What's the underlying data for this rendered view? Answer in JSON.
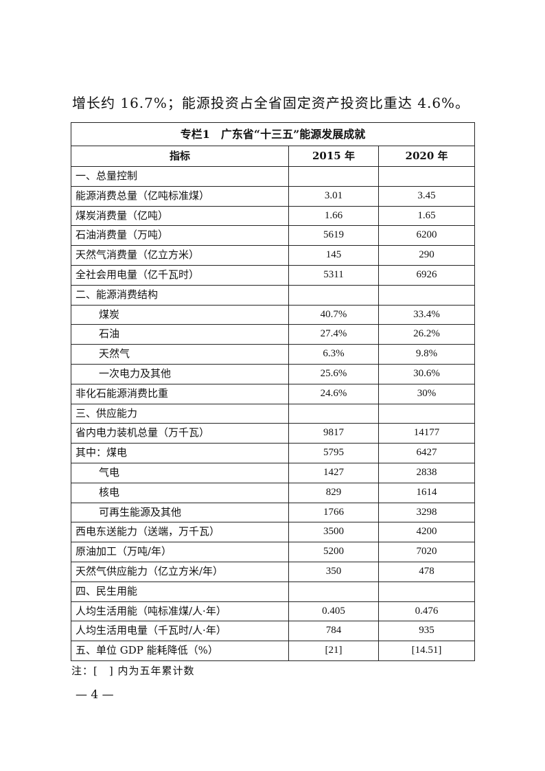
{
  "intro_text": "增长约 16.7%；能源投资占全省固定资产投资比重达 4.6%。",
  "table": {
    "title": "专栏1　广东省“十三五”能源发展成就",
    "headers": [
      "指标",
      "2015 年",
      "2020 年"
    ],
    "rows": [
      {
        "label": "一、总量控制",
        "v2015": "",
        "v2020": "",
        "indent": false
      },
      {
        "label": "能源消费总量（亿吨标准煤）",
        "v2015": "3.01",
        "v2020": "3.45",
        "indent": false
      },
      {
        "label": "煤炭消费量（亿吨）",
        "v2015": "1.66",
        "v2020": "1.65",
        "indent": false
      },
      {
        "label": "石油消费量（万吨）",
        "v2015": "5619",
        "v2020": "6200",
        "indent": false
      },
      {
        "label": "天然气消费量（亿立方米）",
        "v2015": "145",
        "v2020": "290",
        "indent": false
      },
      {
        "label": "全社会用电量（亿千瓦时）",
        "v2015": "5311",
        "v2020": "6926",
        "indent": false
      },
      {
        "label": "二、能源消费结构",
        "v2015": "",
        "v2020": "",
        "indent": false
      },
      {
        "label": "煤炭",
        "v2015": "40.7%",
        "v2020": "33.4%",
        "indent": true
      },
      {
        "label": "石油",
        "v2015": "27.4%",
        "v2020": "26.2%",
        "indent": true
      },
      {
        "label": "天然气",
        "v2015": "6.3%",
        "v2020": "9.8%",
        "indent": true
      },
      {
        "label": "一次电力及其他",
        "v2015": "25.6%",
        "v2020": "30.6%",
        "indent": true
      },
      {
        "label": "非化石能源消费比重",
        "v2015": "24.6%",
        "v2020": "30%",
        "indent": false
      },
      {
        "label": "三、供应能力",
        "v2015": "",
        "v2020": "",
        "indent": false
      },
      {
        "label": "省内电力装机总量（万千瓦）",
        "v2015": "9817",
        "v2020": "14177",
        "indent": false
      },
      {
        "label": "其中：煤电",
        "v2015": "5795",
        "v2020": "6427",
        "indent": false
      },
      {
        "label": "气电",
        "v2015": "1427",
        "v2020": "2838",
        "indent": true
      },
      {
        "label": "核电",
        "v2015": "829",
        "v2020": "1614",
        "indent": true
      },
      {
        "label": "可再生能源及其他",
        "v2015": "1766",
        "v2020": "3298",
        "indent": true
      },
      {
        "label": "西电东送能力（送端，万千瓦）",
        "v2015": "3500",
        "v2020": "4200",
        "indent": false
      },
      {
        "label": "原油加工（万吨/年）",
        "v2015": "5200",
        "v2020": "7020",
        "indent": false
      },
      {
        "label": "天然气供应能力（亿立方米/年）",
        "v2015": "350",
        "v2020": "478",
        "indent": false
      },
      {
        "label": "四、民生用能",
        "v2015": "",
        "v2020": "",
        "indent": false
      },
      {
        "label": "人均生活用能（吨标准煤/人·年）",
        "v2015": "0.405",
        "v2020": "0.476",
        "indent": false
      },
      {
        "label": "人均生活用电量（千瓦时/人·年）",
        "v2015": "784",
        "v2020": "935",
        "indent": false
      },
      {
        "label": "五、单位 GDP 能耗降低（%）",
        "v2015": "[21]",
        "v2020": "[14.51]",
        "indent": false
      }
    ]
  },
  "note": "注：[　] 内为五年累计数",
  "page_number": "— 4 —"
}
